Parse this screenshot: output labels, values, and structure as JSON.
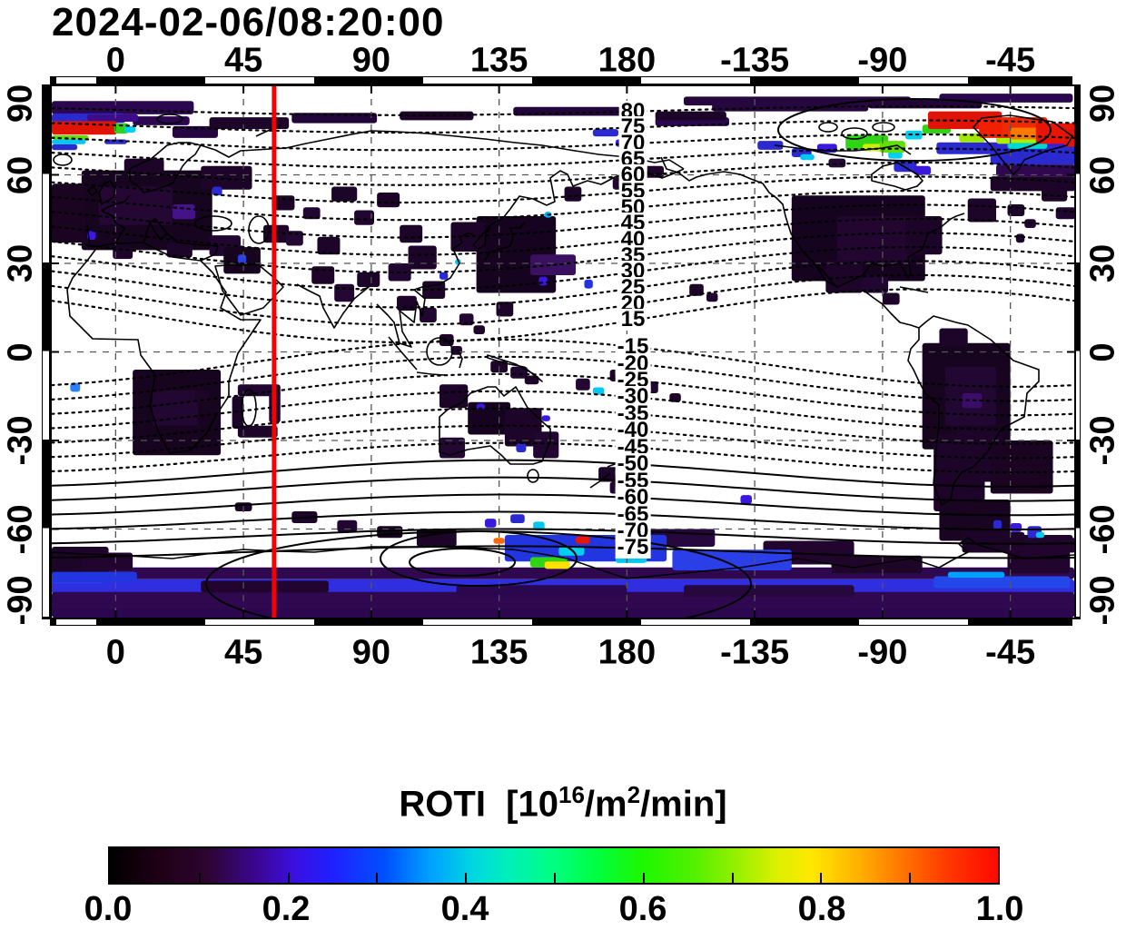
{
  "chart_data": {
    "type": "heatmap",
    "title": "2024-02-06/08:20:00",
    "map": {
      "projection": "equirectangular",
      "lon_min": -22.5,
      "lon_max": 337.5,
      "lat_min": -90,
      "lat_max": 90,
      "grid": true,
      "time_marker_lon_deg": 55.8,
      "time_marker_color": "#f50000"
    },
    "lon_ticks": [
      0,
      45,
      90,
      135,
      180,
      -135,
      -90,
      -45
    ],
    "lat_ticks": [
      90,
      60,
      30,
      0,
      -30,
      -60,
      -90
    ],
    "contour_labels_north": [
      80,
      75,
      70,
      65,
      60,
      55,
      50,
      45,
      40,
      35,
      30,
      25,
      20,
      15
    ],
    "contour_labels_south": [
      -15,
      -20,
      -25,
      -30,
      -35,
      -40,
      -45,
      -50,
      -55,
      -60,
      -65,
      -70,
      -75
    ],
    "colorbar": {
      "title_pre": "ROTI  [10",
      "title_sup1": "16",
      "title_mid": "/m",
      "title_sup2": "2",
      "title_post": "/min]",
      "ticks": [
        "0.0",
        "0.2",
        "0.4",
        "0.6",
        "0.8",
        "1.0"
      ],
      "min": 0,
      "max": 1,
      "stops": [
        [
          "#000000",
          0
        ],
        [
          "#1c0013",
          5
        ],
        [
          "#2e0430",
          11
        ],
        [
          "#3b079a",
          17
        ],
        [
          "#3a10e2",
          21
        ],
        [
          "#2020ff",
          25
        ],
        [
          "#0050ff",
          31
        ],
        [
          "#00a0ff",
          36
        ],
        [
          "#00d8e0",
          41
        ],
        [
          "#00f0b8",
          45
        ],
        [
          "#00ff80",
          50
        ],
        [
          "#00ff3c",
          55
        ],
        [
          "#1cf800",
          60
        ],
        [
          "#55f000",
          66
        ],
        [
          "#9cf000",
          71
        ],
        [
          "#daf000",
          75
        ],
        [
          "#ffe800",
          79
        ],
        [
          "#ffb400",
          84
        ],
        [
          "#ff7800",
          89
        ],
        [
          "#ff3c00",
          94
        ],
        [
          "#ff0800",
          100
        ]
      ]
    },
    "roti_cells": [
      [
        -22.5,
        -73,
        360,
        4,
        "#30084f"
      ],
      [
        -22.5,
        -77,
        360,
        5,
        "#2f2fe0"
      ],
      [
        -22.5,
        -81.3,
        360,
        8.7,
        "#30084f"
      ],
      [
        -22.5,
        -87,
        360,
        3,
        "#2b0750"
      ],
      [
        200,
        -79,
        60,
        4,
        "#26073e"
      ],
      [
        120,
        -79,
        60,
        4,
        "#2b0750"
      ],
      [
        30,
        -77.5,
        45,
        4,
        "#22052f"
      ],
      [
        -22.5,
        -66,
        20,
        9,
        "#1d0529"
      ],
      [
        -12,
        -68,
        18,
        6,
        "#22052f"
      ],
      [
        -22.5,
        -75.5,
        18,
        3,
        "#2a3fe8"
      ],
      [
        -22.5,
        -74.5,
        30,
        3.5,
        "#2136e0"
      ],
      [
        288,
        -76,
        48,
        4,
        "#2447ea"
      ],
      [
        293,
        -74.5,
        20,
        2,
        "#00a0ff"
      ],
      [
        -22.5,
        85,
        50,
        4.5,
        "#2b0750"
      ],
      [
        200,
        86.5,
        80,
        3,
        "#26073e"
      ],
      [
        290,
        87.5,
        47,
        3,
        "#2b0750"
      ],
      [
        6,
        79.8,
        20,
        3,
        "#2b0750"
      ],
      [
        20,
        76.5,
        16,
        4,
        "#250640"
      ],
      [
        33,
        79.5,
        28,
        4,
        "#1d0529"
      ],
      [
        62,
        81,
        30,
        3.5,
        "#22063a"
      ],
      [
        100,
        81.5,
        26,
        3,
        "#1d0529"
      ],
      [
        140,
        83,
        45,
        3,
        "#22063a"
      ],
      [
        190,
        79.5,
        26,
        3,
        "#2b0750"
      ],
      [
        -12,
        61.5,
        46,
        27,
        "#17041f"
      ],
      [
        -22.5,
        57,
        12,
        20,
        "#1a0422"
      ],
      [
        -6,
        56,
        26,
        13,
        "#240733"
      ],
      [
        20,
        50,
        8,
        5,
        "#45128a"
      ],
      [
        3,
        65.5,
        14,
        5,
        "#1d0529"
      ],
      [
        30,
        63,
        18,
        8,
        "#1d0529"
      ],
      [
        -1,
        35.5,
        7,
        4,
        "#1d0529"
      ],
      [
        18,
        37,
        9,
        5,
        "#1d0529"
      ],
      [
        33,
        39.5,
        11,
        7,
        "#200630"
      ],
      [
        38,
        35.5,
        13,
        9,
        "#17041f"
      ],
      [
        52,
        43,
        9,
        6,
        "#1d0529"
      ],
      [
        -10,
        41,
        3,
        3,
        "#3b18e0"
      ],
      [
        34,
        56,
        3.5,
        3,
        "#2a2ad0"
      ],
      [
        43,
        33,
        3,
        3,
        "#2a3fe8"
      ],
      [
        55,
        53,
        8,
        5,
        "#1d0529"
      ],
      [
        66,
        49,
        6,
        4,
        "#200630"
      ],
      [
        76,
        56,
        9,
        5,
        "#1d0529"
      ],
      [
        60,
        41,
        6,
        5,
        "#240733"
      ],
      [
        71,
        39,
        8,
        6,
        "#1d0529"
      ],
      [
        84,
        48,
        7,
        5,
        "#200630"
      ],
      [
        92,
        54,
        8,
        5,
        "#1d0529"
      ],
      [
        100,
        43,
        8,
        6,
        "#1d0529"
      ],
      [
        103,
        36,
        10,
        8,
        "#1d0529"
      ],
      [
        96,
        30,
        8,
        6,
        "#200630"
      ],
      [
        108,
        24,
        8,
        6,
        "#1d0529"
      ],
      [
        69,
        29,
        8,
        6,
        "#1d0529"
      ],
      [
        77,
        23,
        7,
        6,
        "#240733"
      ],
      [
        85,
        27,
        8,
        5,
        "#1d0529"
      ],
      [
        127,
        46,
        28,
        26,
        "#160320"
      ],
      [
        118,
        44,
        12,
        10,
        "#1d0529"
      ],
      [
        146,
        33,
        16,
        7,
        "#3a1060"
      ],
      [
        151,
        47.5,
        2.5,
        2,
        "#00b4ff"
      ],
      [
        114,
        27,
        3,
        2.5,
        "#2a2ad0"
      ],
      [
        119.5,
        31.5,
        2,
        2,
        "#00c8f0"
      ],
      [
        165,
        24.5,
        3,
        3,
        "#2233e0"
      ],
      [
        149,
        25.5,
        3,
        3,
        "#3b18e0"
      ],
      [
        134,
        17,
        6,
        5,
        "#1d0529"
      ],
      [
        99,
        19,
        7,
        5,
        "#1d0529"
      ],
      [
        107,
        15,
        6,
        5,
        "#200630"
      ],
      [
        114,
        6,
        5,
        4,
        "#1d0529"
      ],
      [
        121,
        13,
        5,
        4,
        "#240733"
      ],
      [
        126,
        9,
        4,
        3,
        "#1d0529"
      ],
      [
        118,
        2,
        4,
        3,
        "#200630"
      ],
      [
        174,
        -6,
        6,
        4,
        "#1d0529"
      ],
      [
        186,
        -10,
        5,
        4,
        "#200630"
      ],
      [
        195,
        -14,
        4,
        3,
        "#1d0529"
      ],
      [
        162,
        -9,
        5,
        4,
        "#240733"
      ],
      [
        168,
        -12,
        4,
        2.5,
        "#00c8f0"
      ],
      [
        -150,
        85,
        55,
        3.5,
        "#26073e"
      ],
      [
        -95,
        85.5,
        40,
        3,
        "#22063a"
      ],
      [
        -170,
        81.5,
        25,
        3,
        "#1d0529"
      ],
      [
        -122,
        53,
        47,
        29,
        "#160320"
      ],
      [
        -106,
        46,
        26,
        16,
        "#23062f"
      ],
      [
        -110,
        31,
        13,
        11,
        "#1d0529"
      ],
      [
        -82,
        46,
        13,
        13,
        "#1d0529"
      ],
      [
        -97,
        26,
        9,
        6,
        "#200630"
      ],
      [
        -90,
        20,
        6,
        4,
        "#1d0529"
      ],
      [
        -60,
        52,
        10,
        8,
        "#1d0529"
      ],
      [
        -158,
        23,
        5,
        4,
        "#1d0529"
      ],
      [
        -152,
        20,
        4,
        3,
        "#200630"
      ],
      [
        -175,
        63,
        8,
        4,
        "#1d0529"
      ],
      [
        175,
        59,
        6,
        4,
        "#200630"
      ],
      [
        158,
        56,
        6,
        5,
        "#1d0529"
      ],
      [
        -46,
        50,
        6,
        4,
        "#1d0529"
      ],
      [
        -40,
        45,
        4,
        3,
        "#200630"
      ],
      [
        -43,
        40,
        3,
        3,
        "#1d0529"
      ],
      [
        -34,
        56,
        9,
        5,
        "#1d0529"
      ],
      [
        -29,
        49,
        7,
        4,
        "#200630"
      ],
      [
        -52,
        59.5,
        30,
        5,
        "#1d0529"
      ],
      [
        -50,
        63.5,
        28,
        4,
        "#30084f"
      ],
      [
        -109,
        65.5,
        6,
        3,
        "#240733"
      ],
      [
        -134,
        71.5,
        9,
        3,
        "#2a2ad0"
      ],
      [
        -122,
        69,
        7,
        3,
        "#2a2ad0"
      ],
      [
        -113,
        70.5,
        7,
        3,
        "#3b18e0"
      ],
      [
        -119,
        67,
        5,
        2,
        "#00c8f0"
      ],
      [
        -86,
        65,
        8,
        4,
        "#2a2ad0"
      ],
      [
        -79,
        63,
        6,
        3,
        "#3b18e0"
      ],
      [
        -88,
        68,
        5,
        2.5,
        "#00d0f0"
      ],
      [
        -71,
        71,
        28,
        4,
        "#2a2ad0"
      ],
      [
        -42,
        71,
        17,
        5,
        "#3b18e0"
      ],
      [
        -52,
        69.8,
        30,
        6.3,
        "#2a2ad0"
      ],
      [
        -103,
        73.5,
        15,
        5,
        "#2fd414"
      ],
      [
        -97,
        70.5,
        7,
        2.5,
        "#c8f000"
      ],
      [
        -91,
        71.5,
        9,
        4,
        "#60e000"
      ],
      [
        -76,
        77,
        10,
        3,
        "#2fd414"
      ],
      [
        -63,
        74,
        9,
        3,
        "#a0e800"
      ],
      [
        -82,
        75,
        6,
        3,
        "#00d0f0"
      ],
      [
        -50,
        73,
        20,
        2.5,
        "#aaee00"
      ],
      [
        -46,
        70.8,
        14,
        2,
        "#00d8d0"
      ],
      [
        -74,
        81.5,
        26,
        6,
        "#e01404"
      ],
      [
        -56,
        79.5,
        24,
        7,
        "#f02000"
      ],
      [
        -48,
        79,
        13,
        6,
        "#ee2a00"
      ],
      [
        -45,
        76,
        13,
        4,
        "#ff7800"
      ],
      [
        -36,
        77.5,
        16,
        7,
        "#e81404"
      ],
      [
        -26,
        75.5,
        4,
        6,
        "#e01404"
      ],
      [
        -76,
        3,
        31,
        36,
        "#17041f"
      ],
      [
        -68,
        -5,
        18,
        20,
        "#220732"
      ],
      [
        -64,
        -26,
        16,
        18,
        "#1d0529"
      ],
      [
        -52,
        -30,
        22,
        18,
        "#1a0422"
      ],
      [
        -72,
        -28,
        18,
        26,
        "#1d0529"
      ],
      [
        -70,
        -50,
        25,
        14,
        "#190421"
      ],
      [
        -58,
        -62,
        35,
        6,
        "#1e0628"
      ],
      [
        -40,
        -63,
        18,
        5,
        "#22052f"
      ],
      [
        -70,
        8,
        10,
        6,
        "#1d0529"
      ],
      [
        -62,
        -14,
        7,
        5,
        "#3c0d68"
      ],
      [
        -39,
        -59,
        5,
        4,
        "#2a2ad0"
      ],
      [
        -36,
        -61,
        3,
        2,
        "#00c8f0"
      ],
      [
        -45,
        -58,
        4,
        3,
        "#3b18e0"
      ],
      [
        -51,
        -57,
        3,
        3,
        "#2a2ad0"
      ],
      [
        6,
        -6,
        31,
        29,
        "#17041f"
      ],
      [
        13,
        -13,
        16,
        12,
        "#220732"
      ],
      [
        43,
        -11,
        15,
        4,
        "#200630"
      ],
      [
        41,
        -15,
        4,
        11,
        "#1d0529"
      ],
      [
        54,
        -13,
        4,
        11,
        "#240733"
      ],
      [
        43,
        -25,
        14,
        4,
        "#1d0529"
      ],
      [
        28,
        -13,
        5,
        4,
        "#1d0529"
      ],
      [
        -16,
        -10.5,
        3.5,
        3,
        "#2a7fff"
      ],
      [
        62,
        -54,
        9,
        4,
        "#1d0529"
      ],
      [
        78,
        -57,
        7,
        4,
        "#200630"
      ],
      [
        92,
        -59,
        9,
        4,
        "#17041f"
      ],
      [
        42,
        -51,
        6,
        3,
        "#1d0529"
      ],
      [
        106,
        -60,
        14,
        6,
        "#1d0529"
      ],
      [
        114,
        -11,
        10,
        8,
        "#1d0529"
      ],
      [
        124,
        -17,
        15,
        11,
        "#160320"
      ],
      [
        137,
        -19,
        13,
        13,
        "#1d0529"
      ],
      [
        147,
        -27,
        9,
        9,
        "#200630"
      ],
      [
        114,
        -29,
        9,
        7,
        "#240733"
      ],
      [
        127,
        -17.5,
        3,
        2,
        "#3b18e0"
      ],
      [
        141,
        -31,
        3.5,
        3,
        "#2a2ad0"
      ],
      [
        150,
        -21.5,
        3,
        2,
        "#3b18e0"
      ],
      [
        132,
        -3,
        6,
        4,
        "#1d0529"
      ],
      [
        139,
        -5,
        6,
        4,
        "#200630"
      ],
      [
        144,
        -8,
        5,
        3,
        "#1d0529"
      ],
      [
        170,
        -39,
        7,
        5,
        "#1d0529"
      ],
      [
        174,
        -44,
        5,
        4,
        "#200630"
      ],
      [
        185,
        -60,
        26,
        6,
        "#26073e"
      ],
      [
        228,
        -64,
        32,
        8,
        "#22052f"
      ],
      [
        252,
        -69,
        32,
        6,
        "#1e0628"
      ],
      [
        298,
        -61,
        22,
        7,
        "#1d0529"
      ],
      [
        314,
        -66,
        22,
        9,
        "#22052f"
      ],
      [
        137,
        -62,
        57,
        9,
        "#2136e0"
      ],
      [
        196,
        -67,
        42,
        7,
        "#2a3fe8"
      ],
      [
        139,
        -55,
        5,
        3,
        "#2a2ad0"
      ],
      [
        147,
        -57.5,
        4,
        3,
        "#00c8f0"
      ],
      [
        130,
        -56.5,
        4,
        3,
        "#3b18e0"
      ],
      [
        220,
        -48.5,
        4,
        3,
        "#3b18e0"
      ],
      [
        156,
        -66,
        9,
        3,
        "#00d0f0"
      ],
      [
        176,
        -68.5,
        11,
        3,
        "#00c8f0"
      ],
      [
        146,
        -69.5,
        13,
        3.5,
        "#2fd414"
      ],
      [
        151,
        -71,
        9,
        2.5,
        "#ffe000"
      ],
      [
        162,
        -62.5,
        5,
        2.5,
        "#e81404"
      ],
      [
        133,
        -63,
        4,
        2,
        "#ff6a00"
      ],
      [
        -22.5,
        80.8,
        26,
        3.2,
        "#2a2ad0"
      ],
      [
        -10,
        80.5,
        18,
        2.5,
        "#3c0d8a"
      ],
      [
        -22.5,
        70.4,
        9,
        2,
        "#2a2ad0"
      ],
      [
        -4,
        72,
        8,
        1.6,
        "#2a2ad0"
      ],
      [
        -22.5,
        73.4,
        13,
        1.4,
        "#60e000"
      ],
      [
        -22.5,
        72,
        12,
        1.6,
        "#00c8f0"
      ],
      [
        -22.5,
        78.2,
        23,
        4.6,
        "#e01404"
      ],
      [
        -0.5,
        77.5,
        5,
        3.5,
        "#2fd414"
      ],
      [
        3,
        76.5,
        4,
        2.2,
        "#00d0f0"
      ],
      [
        168,
        75.5,
        9,
        2.5,
        "#2a2ad0"
      ],
      [
        176,
        72,
        11,
        2.5,
        "#3b18e0"
      ]
    ]
  }
}
